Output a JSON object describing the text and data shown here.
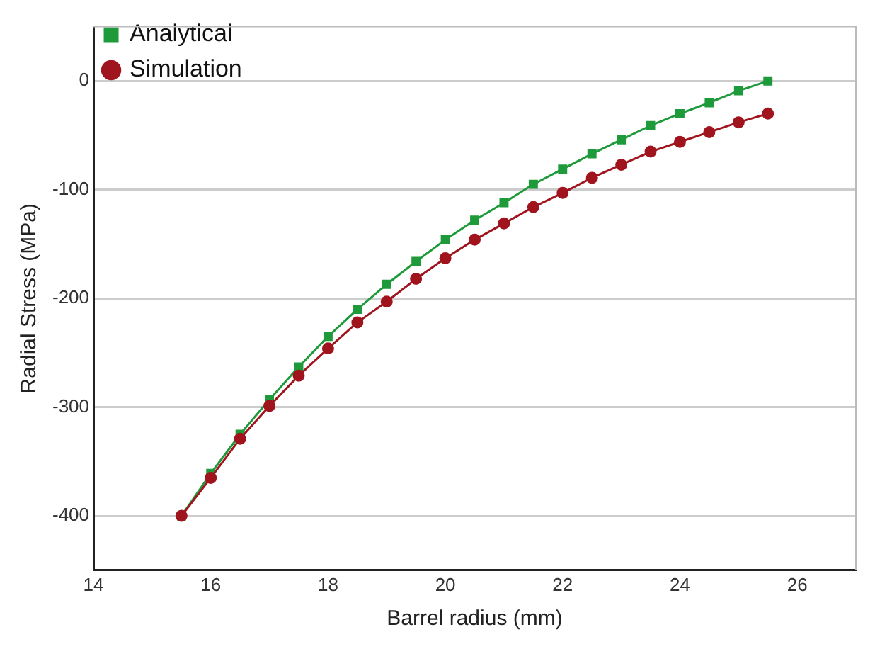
{
  "chart_data": {
    "type": "line",
    "xlabel": "Barrel radius (mm)",
    "ylabel": "Radial Stress (MPa)",
    "x": [
      15.5,
      16,
      16.5,
      17,
      17.5,
      18,
      18.5,
      19,
      19.5,
      20,
      20.5,
      21,
      21.5,
      22,
      22.5,
      23,
      23.5,
      24,
      24.5,
      25,
      25.5
    ],
    "series": [
      {
        "name": "Analytical",
        "color": "#1e9a3a",
        "marker": "square",
        "values": [
          -400,
          -361,
          -325,
          -293,
          -263,
          -235,
          -210,
          -187,
          -166,
          -146,
          -128,
          -112,
          -95,
          -81,
          -67,
          -54,
          -41,
          -30,
          -20,
          -9,
          0
        ]
      },
      {
        "name": "Simulation",
        "color": "#a0141e",
        "marker": "circle",
        "values": [
          -400,
          -365,
          -329,
          -299,
          -271,
          -246,
          -222,
          -203,
          -182,
          -163,
          -146,
          -131,
          -116,
          -103,
          -89,
          -77,
          -65,
          -56,
          -47,
          -38,
          -30
        ]
      }
    ],
    "xlim": [
      14,
      27
    ],
    "xticks": [
      14,
      16,
      18,
      20,
      22,
      24,
      26
    ],
    "ylim": [
      -450,
      50
    ],
    "yticks": [
      -400,
      -300,
      -200,
      -100,
      0
    ],
    "grid": "y",
    "legend": "top left",
    "line_style": "solid"
  }
}
